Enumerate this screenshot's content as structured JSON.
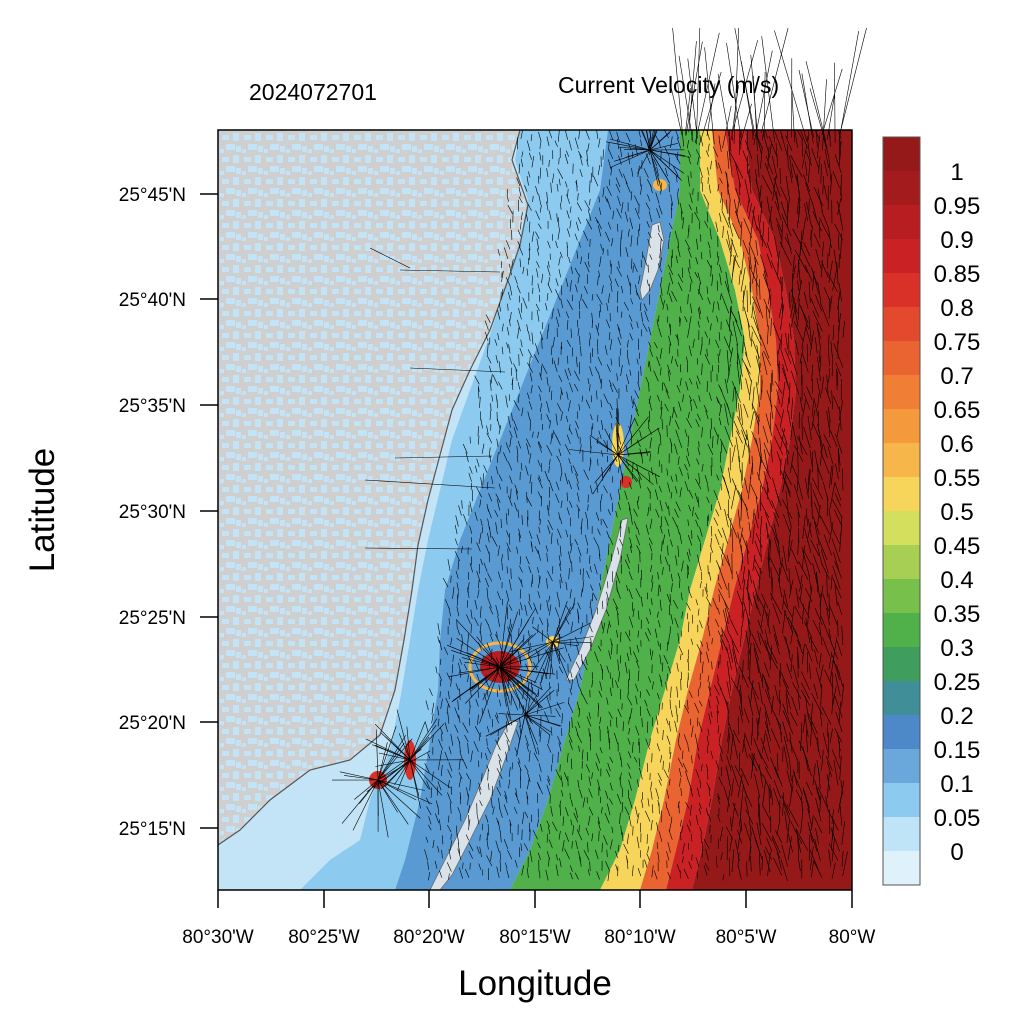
{
  "header": {
    "left_title": "2024072701",
    "right_title": "Current Velocity (m/s)"
  },
  "axes": {
    "xlabel": "Longitude",
    "ylabel": "Latitude",
    "x_ticks": [
      "80°30'W",
      "80°25'W",
      "80°20'W",
      "80°15'W",
      "80°10'W",
      "80°5'W",
      "80°W"
    ],
    "y_ticks": [
      "25°45'N",
      "25°40'N",
      "25°35'N",
      "25°30'N",
      "25°25'N",
      "25°20'N",
      "25°15'N"
    ]
  },
  "colorbar": {
    "labels": [
      "1",
      "0.95",
      "0.9",
      "0.85",
      "0.8",
      "0.75",
      "0.7",
      "0.65",
      "0.6",
      "0.55",
      "0.5",
      "0.45",
      "0.4",
      "0.35",
      "0.3",
      "0.25",
      "0.2",
      "0.15",
      "0.1",
      "0.05",
      "0"
    ],
    "colors": [
      "#951919",
      "#a41b1e",
      "#b81d22",
      "#c92124",
      "#d93028",
      "#e2492d",
      "#ea6431",
      "#f07e35",
      "#f59a3c",
      "#f7b64a",
      "#f7d55a",
      "#d4df5e",
      "#a6cf53",
      "#78c04c",
      "#50b04a",
      "#3f9e5e",
      "#3f8e98",
      "#4d88c8",
      "#6aa8dc",
      "#8ccaef",
      "#bfe4f7",
      "#dff1fb"
    ]
  },
  "map": {
    "colors": {
      "land": "#cfcfcf",
      "calm_water": "#c2e4f6",
      "slow": "#8ccaef",
      "medium": "#5a9ad3",
      "ridge": "#d8e2e8"
    }
  }
}
